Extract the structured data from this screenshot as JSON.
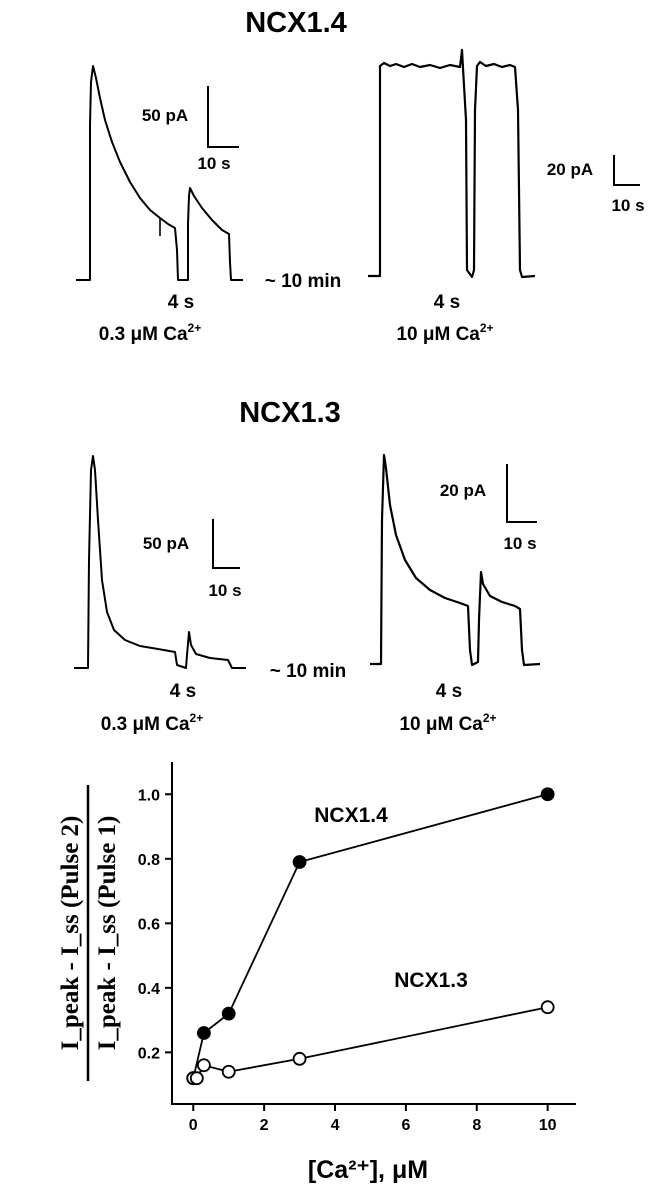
{
  "traces": {
    "ncx14": {
      "title": "NCX1.4",
      "left": {
        "scale_current": "50 pA",
        "scale_time": "10 s",
        "pulse": "4 s",
        "condition": "0.3 μM Ca",
        "condition_sup": "2+"
      },
      "gap": "~ 10 min",
      "right": {
        "scale_current": "20 pA",
        "scale_time": "10 s",
        "pulse": "4 s",
        "condition": "10 μM Ca",
        "condition_sup": "2+"
      }
    },
    "ncx13": {
      "title": "NCX1.3",
      "left": {
        "scale_current": "50 pA",
        "scale_time": "10 s",
        "pulse": "4 s",
        "condition": "0.3 μM Ca",
        "condition_sup": "2+"
      },
      "gap": "~ 10 min",
      "right": {
        "scale_current": "20 pA",
        "scale_time": "10 s",
        "pulse": "4 s",
        "condition": "10 μM Ca",
        "condition_sup": "2+"
      }
    }
  },
  "chart_data": {
    "type": "line",
    "xlabel": "[Ca²⁺], μM",
    "ylabel": {
      "numerator": "I_peak - I_ss (Pulse 2)",
      "denominator": "I_peak - I_ss (Pulse 1)"
    },
    "xlim": [
      -0.6,
      10.8
    ],
    "ylim": [
      0.04,
      1.1
    ],
    "xticks": [
      "0",
      "2",
      "4",
      "6",
      "8",
      "10"
    ],
    "yticks": [
      "0.2",
      "0.4",
      "0.6",
      "0.8",
      "1.0"
    ],
    "grid": false,
    "series": [
      {
        "name": "NCX1.4",
        "marker": "filled-circle",
        "color": "#000000",
        "x": [
          0,
          0.3,
          1,
          3,
          10
        ],
        "y": [
          0.12,
          0.26,
          0.32,
          0.79,
          1.0
        ]
      },
      {
        "name": "NCX1.3",
        "marker": "open-circle",
        "color": "#000000",
        "x": [
          0,
          0.1,
          0.3,
          1,
          3,
          10
        ],
        "y": [
          0.12,
          0.12,
          0.16,
          0.14,
          0.18,
          0.34
        ]
      }
    ]
  }
}
